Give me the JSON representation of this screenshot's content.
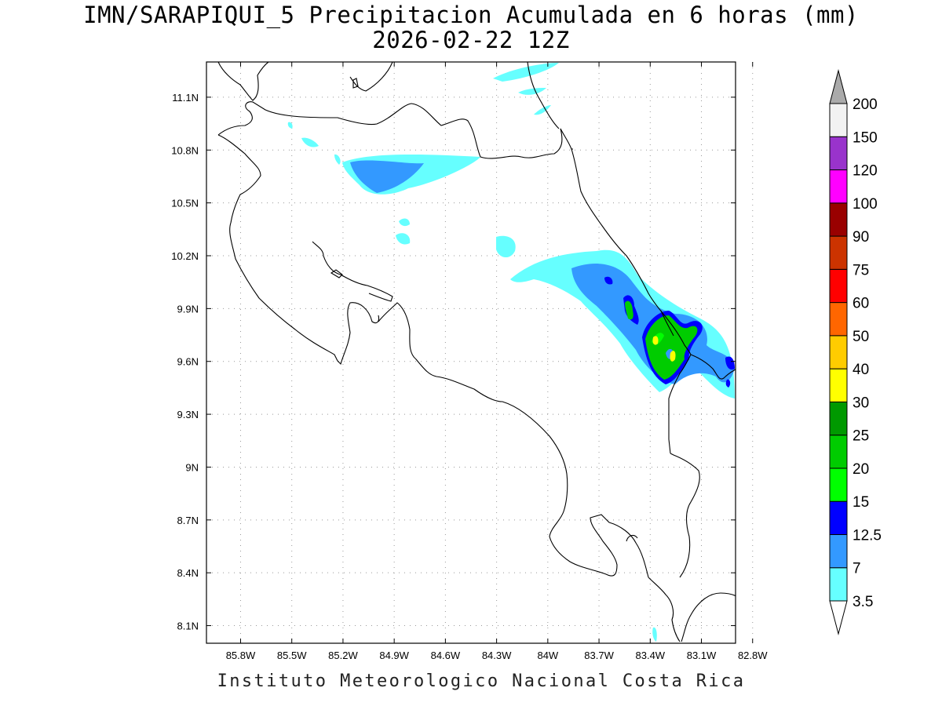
{
  "title": {
    "line1": "IMN/SARAPIQUI_5 Precipitacion Acumulada en 6 horas (mm)",
    "line2": "2026-02-22 12Z"
  },
  "footer": "Instituto Meteorologico Nacional Costa Rica",
  "map": {
    "lon_range": [
      -86.0,
      -82.9
    ],
    "lat_range": [
      8.0,
      11.3
    ],
    "lon_ticks": [
      -85.8,
      -85.5,
      -85.2,
      -84.9,
      -84.6,
      -84.3,
      -84.0,
      -83.7,
      -83.4,
      -83.1,
      -82.8
    ],
    "lat_ticks": [
      8.1,
      8.4,
      8.7,
      9.0,
      9.3,
      9.6,
      9.9,
      10.2,
      10.5,
      10.8,
      11.1
    ],
    "lon_labels": [
      "85.8W",
      "85.5W",
      "85.2W",
      "84.9W",
      "84.6W",
      "84.3W",
      "84W",
      "83.7W",
      "83.4W",
      "83.1W",
      "82.8W"
    ],
    "lat_labels": [
      "8.1N",
      "8.4N",
      "8.7N",
      "9N",
      "9.3N",
      "9.6N",
      "9.9N",
      "10.2N",
      "10.5N",
      "10.8N",
      "11.1N"
    ],
    "grid": true,
    "precip_areas": [
      {
        "name": "north-band",
        "level": "3.5-7"
      },
      {
        "name": "caribbean-slope-band",
        "level": "3.5-7"
      },
      {
        "name": "core-maximum",
        "level": "20-25"
      }
    ]
  },
  "colorbar": {
    "labels": [
      "3.5",
      "7",
      "12.5",
      "15",
      "20",
      "25",
      "30",
      "40",
      "50",
      "60",
      "75",
      "90",
      "100",
      "120",
      "150",
      "200"
    ],
    "colors": [
      "#66ffff",
      "#3399ff",
      "#0000ff",
      "#00ff00",
      "#00cc00",
      "#009900",
      "#ffff00",
      "#ffcc00",
      "#ff6600",
      "#ff0000",
      "#cc3300",
      "#990000",
      "#ff00ff",
      "#9933cc",
      "#f2f2f2",
      "#aaaaaa"
    ],
    "over_color": "#aaaaaa",
    "under_color": "#ffffff"
  }
}
